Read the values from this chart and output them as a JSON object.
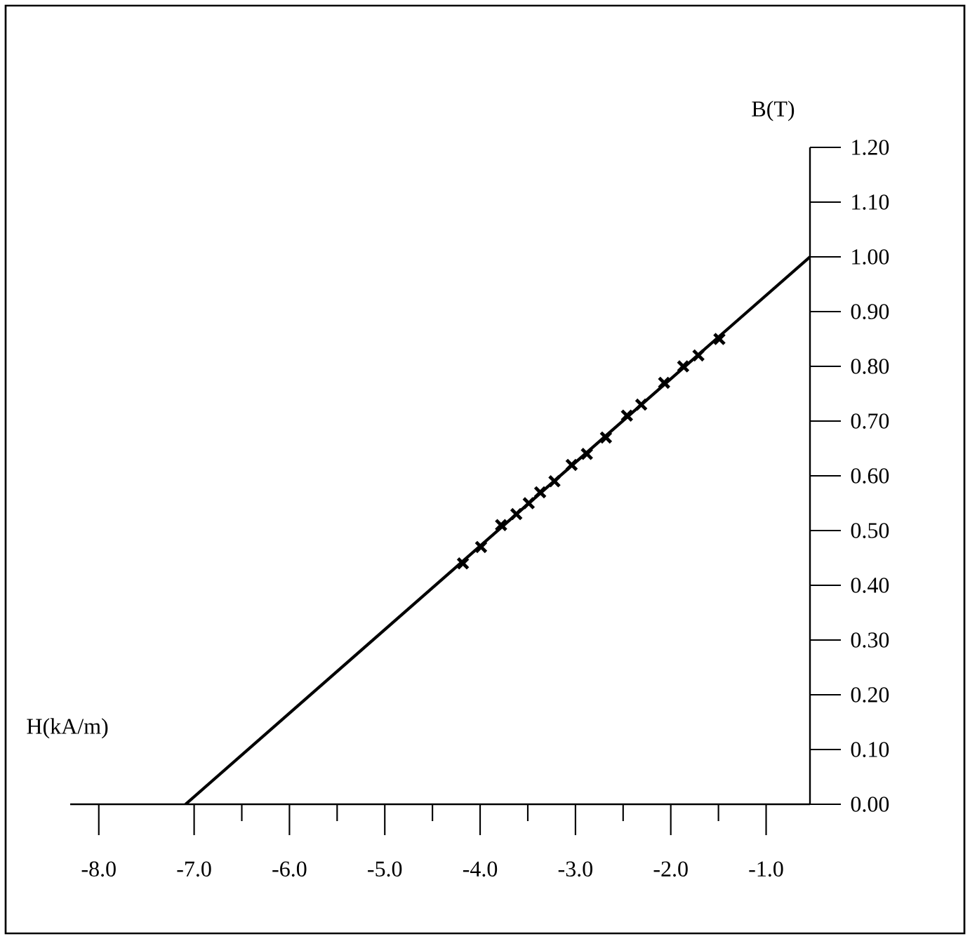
{
  "chart_data": {
    "type": "scatter",
    "xlabel": "H(kA/m)",
    "ylabel": "B(T)",
    "xlim": [
      -8.3,
      -0.54
    ],
    "ylim": [
      0,
      1.2
    ],
    "xticks": [
      {
        "value": -8,
        "label": "-8.0"
      },
      {
        "value": -7,
        "label": "-7.0"
      },
      {
        "value": -6.5,
        "label": null
      },
      {
        "value": -6,
        "label": "-6.0"
      },
      {
        "value": -5.5,
        "label": null
      },
      {
        "value": -5,
        "label": "-5.0"
      },
      {
        "value": -4.5,
        "label": null
      },
      {
        "value": -4,
        "label": "-4.0"
      },
      {
        "value": -3.5,
        "label": null
      },
      {
        "value": -3,
        "label": "-3.0"
      },
      {
        "value": -2.5,
        "label": null
      },
      {
        "value": -2,
        "label": "-2.0"
      },
      {
        "value": -1.5,
        "label": null
      },
      {
        "value": -1,
        "label": "-1.0"
      }
    ],
    "yticks": [
      {
        "value": 0,
        "label": "0.00"
      },
      {
        "value": 0.1,
        "label": "0.10"
      },
      {
        "value": 0.2,
        "label": "0.20"
      },
      {
        "value": 0.3,
        "label": "0.30"
      },
      {
        "value": 0.4,
        "label": "0.40"
      },
      {
        "value": 0.5,
        "label": "0.50"
      },
      {
        "value": 0.6,
        "label": "0.60"
      },
      {
        "value": 0.7,
        "label": "0.70"
      },
      {
        "value": 0.8,
        "label": "0.80"
      },
      {
        "value": 0.9,
        "label": "0.90"
      },
      {
        "value": 1.0,
        "label": "1.00"
      },
      {
        "value": 1.1,
        "label": "1.10"
      },
      {
        "value": 1.2,
        "label": "1.20"
      }
    ],
    "series": [
      {
        "type": "line",
        "marker": "none",
        "color": "#000000",
        "x": [
          -7.09,
          -0.54
        ],
        "values": [
          0,
          1.0
        ]
      },
      {
        "marker": "cross",
        "color": "#000000",
        "x": [
          -4.18,
          -3.99,
          -3.78,
          -3.62,
          -3.49,
          -3.37,
          -3.22,
          -3.04,
          -2.88,
          -2.68,
          -2.46,
          -2.31,
          -2.07,
          -1.87,
          -1.71,
          -1.49
        ],
        "values": [
          0.44,
          0.47,
          0.51,
          0.53,
          0.55,
          0.57,
          0.59,
          0.62,
          0.64,
          0.67,
          0.71,
          0.73,
          0.77,
          0.8,
          0.82,
          0.85
        ]
      }
    ]
  }
}
